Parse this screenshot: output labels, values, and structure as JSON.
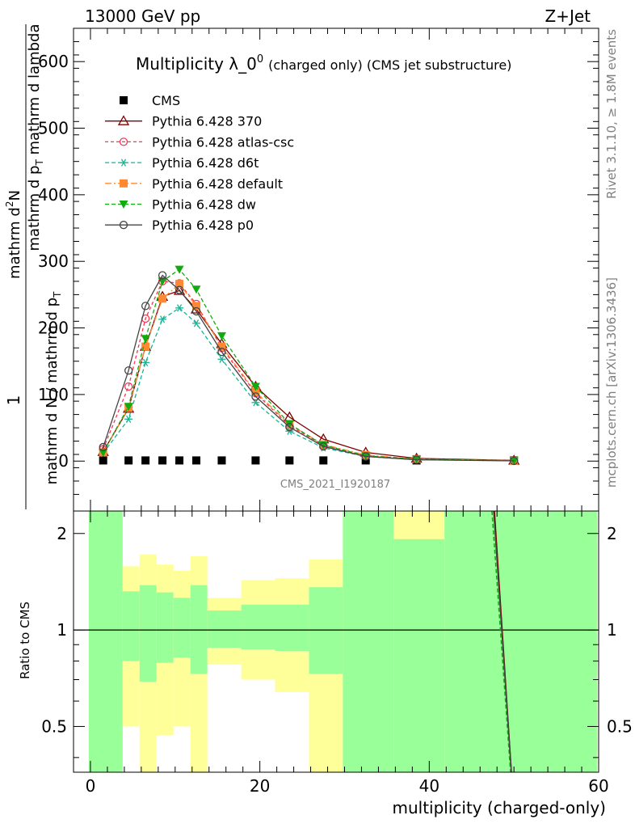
{
  "header": {
    "left": "13000 GeV pp",
    "right": "Z+Jet"
  },
  "side_labels": {
    "rivet": "Rivet 3.1.10, ≥ 1.8M events",
    "mcplots": "mcplots.cern.ch [arXiv:1306.3436]"
  },
  "chart_data": [
    {
      "type": "line",
      "title": "Multiplicity λ_0",
      "title_sup": "0",
      "subtitle": "(charged only) (CMS jet substructure)",
      "watermark": "CMS_2021_I1920187",
      "ylabel_top": "1",
      "ylabel_num": "mathrm d",
      "ylabel_num_sup": "2",
      "ylabel_num_tail": "N",
      "ylabel_num2": "mathrm d p",
      "ylabel_num2_sub": "T",
      "ylabel_num3": " mathrm d lambda",
      "ylabel_den": "mathrm d N / mathrm d p",
      "ylabel_den_sub": "T",
      "xlim": [
        -2,
        60
      ],
      "ylim": [
        -75,
        650
      ],
      "yticks": [
        0,
        100,
        200,
        300,
        400,
        500,
        600
      ],
      "ytick_labels": [
        "0",
        "100",
        "200",
        "300",
        "400",
        "500",
        "600"
      ],
      "legend_position": "top-left",
      "series": [
        {
          "name": "CMS",
          "color": "#000000",
          "marker": "square",
          "x": [
            1.5,
            4.5,
            6.5,
            8.5,
            10.5,
            12.5,
            15.5,
            19.5,
            23.5,
            27.5,
            32.5,
            38.5,
            50.0
          ],
          "y": [
            1,
            1,
            1,
            1,
            1,
            1,
            1,
            1,
            1,
            1,
            1,
            1,
            1
          ]
        },
        {
          "name": "Pythia 6.428 370",
          "color": "#800000",
          "marker": "triangle-open",
          "dash": "solid",
          "x": [
            1.5,
            4.5,
            6.5,
            8.5,
            10.5,
            12.5,
            15.5,
            19.5,
            23.5,
            27.5,
            32.5,
            38.5,
            50.0
          ],
          "y": [
            14,
            79,
            172,
            247,
            256,
            228,
            176,
            112,
            66,
            33,
            13,
            4,
            1
          ]
        },
        {
          "name": "Pythia 6.428 atlas-csc",
          "color": "#ff3355",
          "marker": "circle-open",
          "dash": "4,3",
          "x": [
            1.5,
            4.5,
            6.5,
            8.5,
            10.5,
            12.5,
            15.5,
            19.5,
            23.5,
            27.5,
            32.5,
            38.5,
            50.0
          ],
          "y": [
            18,
            112,
            214,
            270,
            267,
            236,
            170,
            102,
            53,
            24,
            8,
            3,
            0.5
          ]
        },
        {
          "name": "Pythia 6.428 d6t",
          "color": "#1ab394",
          "marker": "asterisk",
          "dash": "5,3",
          "x": [
            1.5,
            4.5,
            6.5,
            8.5,
            10.5,
            12.5,
            15.5,
            19.5,
            23.5,
            27.5,
            32.5,
            38.5,
            50.0
          ],
          "y": [
            12,
            63,
            148,
            213,
            230,
            207,
            153,
            88,
            45,
            20,
            7,
            2,
            0.5
          ]
        },
        {
          "name": "Pythia 6.428 default",
          "color": "#ff8833",
          "marker": "square",
          "dash": "8,3,2,3",
          "x": [
            1.5,
            4.5,
            6.5,
            8.5,
            10.5,
            12.5,
            15.5,
            19.5,
            23.5,
            27.5,
            32.5,
            38.5,
            50.0
          ],
          "y": [
            13,
            80,
            172,
            244,
            266,
            233,
            172,
            104,
            55,
            25,
            9,
            3,
            0.5
          ]
        },
        {
          "name": "Pythia 6.428 dw",
          "color": "#11aa11",
          "marker": "triangle-down",
          "dash": "5,3",
          "x": [
            1.5,
            4.5,
            6.5,
            8.5,
            10.5,
            12.5,
            15.5,
            19.5,
            23.5,
            27.5,
            32.5,
            38.5,
            50.0
          ],
          "y": [
            13,
            82,
            184,
            270,
            288,
            258,
            188,
            112,
            56,
            24,
            8,
            3,
            0.5
          ]
        },
        {
          "name": "Pythia 6.428 p0",
          "color": "#444444",
          "marker": "circle-open",
          "dash": "solid",
          "x": [
            1.5,
            4.5,
            6.5,
            8.5,
            10.5,
            12.5,
            15.5,
            19.5,
            23.5,
            27.5,
            32.5,
            38.5,
            50.0
          ],
          "y": [
            21,
            136,
            233,
            279,
            257,
            225,
            164,
            97,
            51,
            22,
            7,
            2,
            0.3
          ]
        }
      ]
    },
    {
      "type": "line",
      "ylabel": "Ratio to CMS",
      "xlabel": "multiplicity (charged-only)",
      "xlim": [
        -2,
        60
      ],
      "ylim": [
        0.36,
        2.35
      ],
      "y_scale": "log",
      "yticks": [
        0.5,
        1,
        2
      ],
      "ytick_labels": [
        "0.5",
        "1",
        "2"
      ],
      "xticks": [
        0,
        20,
        40,
        60
      ],
      "xtick_labels": [
        "0",
        "20",
        "40",
        "60"
      ],
      "reference_line": 1,
      "bands": [
        {
          "x0": -0.2,
          "x1": 3.8,
          "g_lo": 0.36,
          "g_hi": 2.35,
          "y_lo": 0.36,
          "y_hi": 2.35
        },
        {
          "x0": 3.8,
          "x1": 5.8,
          "g_lo": 0.8,
          "g_hi": 1.32,
          "y_lo": 0.5,
          "y_hi": 1.58
        },
        {
          "x0": 5.8,
          "x1": 7.8,
          "g_lo": 0.69,
          "g_hi": 1.38,
          "y_lo": 0.36,
          "y_hi": 1.72
        },
        {
          "x0": 7.8,
          "x1": 9.8,
          "g_lo": 0.79,
          "g_hi": 1.31,
          "y_lo": 0.47,
          "y_hi": 1.6
        },
        {
          "x0": 9.8,
          "x1": 11.8,
          "g_lo": 0.82,
          "g_hi": 1.26,
          "y_lo": 0.5,
          "y_hi": 1.53
        },
        {
          "x0": 11.8,
          "x1": 13.8,
          "g_lo": 0.73,
          "g_hi": 1.38,
          "y_lo": 0.36,
          "y_hi": 1.7
        },
        {
          "x0": 13.8,
          "x1": 17.8,
          "g_lo": 0.88,
          "g_hi": 1.15,
          "y_lo": 0.78,
          "y_hi": 1.26
        },
        {
          "x0": 17.8,
          "x1": 21.8,
          "g_lo": 0.87,
          "g_hi": 1.2,
          "y_lo": 0.7,
          "y_hi": 1.43
        },
        {
          "x0": 21.8,
          "x1": 25.8,
          "g_lo": 0.86,
          "g_hi": 1.2,
          "y_lo": 0.64,
          "y_hi": 1.45
        },
        {
          "x0": 25.8,
          "x1": 29.8,
          "g_lo": 0.73,
          "g_hi": 1.36,
          "y_lo": 0.36,
          "y_hi": 1.66
        },
        {
          "x0": 29.8,
          "x1": 35.8,
          "g_lo": 0.36,
          "g_hi": 2.35,
          "y_lo": 0.36,
          "y_hi": 2.35
        },
        {
          "x0": 35.8,
          "x1": 41.8,
          "g_lo": 0.36,
          "g_hi": 1.92,
          "y_lo": 0.36,
          "y_hi": 2.35
        },
        {
          "x0": 41.8,
          "x1": 59.8,
          "g_lo": 0.36,
          "g_hi": 2.35,
          "y_lo": 0.36,
          "y_hi": 2.35
        }
      ],
      "ratio_lines": [
        {
          "name": "Pythia 6.428 370",
          "color": "#800000",
          "dash": "solid",
          "x": [
            47.7,
            49.7
          ],
          "y": [
            2.35,
            0.36
          ]
        },
        {
          "name": "Pythia 6.428 dw",
          "color": "#11aa11",
          "dash": "5,3",
          "x": [
            47.4,
            49.6
          ],
          "y": [
            2.35,
            0.36
          ]
        },
        {
          "name": "Pythia 6.428 p0",
          "color": "#444444",
          "dash": "solid",
          "x": [
            47.6,
            49.7
          ],
          "y": [
            2.35,
            0.36
          ]
        }
      ]
    }
  ]
}
